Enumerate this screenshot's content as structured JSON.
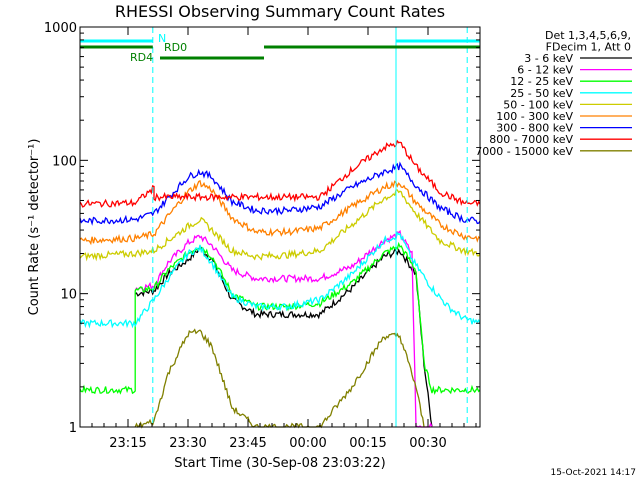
{
  "chart_data": {
    "type": "line",
    "title": "RHESSI Observing Summary Count Rates",
    "xlabel": "Start Time (30-Sep-08 23:03:22)",
    "ylabel": "Count Rate (s⁻¹ detector⁻¹)",
    "yscale": "log",
    "ylim": [
      1,
      1000
    ],
    "xlim_min": [
      0,
      100
    ],
    "x_ticks": [
      {
        "x": 12,
        "label": "23:15"
      },
      {
        "x": 27,
        "label": "23:30"
      },
      {
        "x": 42,
        "label": "23:45"
      },
      {
        "x": 57,
        "label": "00:00"
      },
      {
        "x": 72,
        "label": "00:15"
      },
      {
        "x": 87,
        "label": "00:30"
      }
    ],
    "y_ticks": [
      {
        "y": 1,
        "label": "1"
      },
      {
        "y": 10,
        "label": "10"
      },
      {
        "y": 100,
        "label": "100"
      },
      {
        "y": 1000,
        "label": "1000"
      }
    ],
    "legend_header": [
      "Det 1,3,4,5,6,9,",
      "FDecim 1, Att 0"
    ],
    "legend_position": "right",
    "timestamp": "15-Oct-2021 14:17",
    "flags": [
      {
        "label": "N",
        "color": "#00ffff",
        "segments": [
          [
            0,
            18.2
          ],
          [
            79,
            100
          ]
        ]
      },
      {
        "label": "RD0",
        "color": "#008000",
        "segments": [
          [
            0,
            18.2
          ],
          [
            46,
            100
          ]
        ]
      },
      {
        "label": "RD4",
        "color": "#008000",
        "segments": [
          [
            20,
            46
          ]
        ]
      }
    ],
    "vlines": [
      {
        "x": 18.2,
        "color": "#00ffff",
        "style": "dashed"
      },
      {
        "x": 79.0,
        "color": "#00ffff",
        "style": "solid"
      },
      {
        "x": 96.8,
        "color": "#00ffff",
        "style": "dashed"
      }
    ],
    "series": [
      {
        "name": "3 - 6 keV",
        "color": "#000000",
        "points": [
          [
            13.8,
            10
          ],
          [
            18.5,
            10.5
          ],
          [
            22,
            14
          ],
          [
            27,
            18
          ],
          [
            30,
            22
          ],
          [
            33,
            18
          ],
          [
            38,
            9
          ],
          [
            44,
            7
          ],
          [
            52,
            7
          ],
          [
            60,
            7
          ],
          [
            68,
            11
          ],
          [
            76,
            19
          ],
          [
            80,
            21
          ],
          [
            84,
            14
          ],
          [
            86,
            3
          ],
          [
            88,
            1
          ]
        ]
      },
      {
        "name": "6 - 12 keV",
        "color": "#ff00ff",
        "points": [
          [
            13.8,
            11
          ],
          [
            18.5,
            11.5
          ],
          [
            22,
            17
          ],
          [
            27,
            24
          ],
          [
            30,
            27
          ],
          [
            33,
            23
          ],
          [
            38,
            15
          ],
          [
            44,
            13
          ],
          [
            52,
            13
          ],
          [
            60,
            13
          ],
          [
            68,
            16
          ],
          [
            76,
            25
          ],
          [
            80,
            28
          ],
          [
            83,
            20
          ],
          [
            84,
            1
          ],
          [
            88,
            1
          ]
        ]
      },
      {
        "name": "12 - 25 keV",
        "color": "#00ff00",
        "points": [
          [
            0,
            1.9
          ],
          [
            13.8,
            1.9
          ],
          [
            13.8,
            10.5
          ],
          [
            18.5,
            11
          ],
          [
            22,
            15
          ],
          [
            27,
            20
          ],
          [
            30,
            23
          ],
          [
            33,
            19
          ],
          [
            38,
            10
          ],
          [
            44,
            8
          ],
          [
            52,
            8
          ],
          [
            60,
            8.5
          ],
          [
            68,
            12
          ],
          [
            76,
            20
          ],
          [
            80,
            23
          ],
          [
            84,
            15
          ],
          [
            86,
            3
          ],
          [
            88,
            1.9
          ],
          [
            100,
            1.9
          ]
        ]
      },
      {
        "name": "25 - 50 keV",
        "color": "#00ffff",
        "points": [
          [
            0,
            6
          ],
          [
            13.8,
            6
          ],
          [
            18.5,
            9
          ],
          [
            22,
            13
          ],
          [
            27,
            20
          ],
          [
            30,
            22
          ],
          [
            33,
            17
          ],
          [
            38,
            9.5
          ],
          [
            44,
            8
          ],
          [
            52,
            8
          ],
          [
            60,
            9
          ],
          [
            68,
            14
          ],
          [
            76,
            25
          ],
          [
            80,
            28
          ],
          [
            83,
            18
          ],
          [
            88,
            11
          ],
          [
            92,
            8
          ],
          [
            96,
            6.5
          ],
          [
            100,
            6
          ]
        ]
      },
      {
        "name": "50 - 100 keV",
        "color": "#cccc00",
        "points": [
          [
            0,
            19
          ],
          [
            13.8,
            20
          ],
          [
            18.5,
            21
          ],
          [
            22,
            25
          ],
          [
            27,
            32
          ],
          [
            30,
            36
          ],
          [
            33,
            30
          ],
          [
            38,
            21
          ],
          [
            44,
            19
          ],
          [
            52,
            19.5
          ],
          [
            60,
            21
          ],
          [
            68,
            33
          ],
          [
            76,
            52
          ],
          [
            80,
            58
          ],
          [
            84,
            40
          ],
          [
            90,
            25
          ],
          [
            96,
            21
          ],
          [
            100,
            20
          ]
        ]
      },
      {
        "name": "100 - 300 keV",
        "color": "#ff8000",
        "points": [
          [
            0,
            25
          ],
          [
            13.8,
            26
          ],
          [
            18.5,
            28
          ],
          [
            22,
            38
          ],
          [
            27,
            58
          ],
          [
            30,
            68
          ],
          [
            33,
            60
          ],
          [
            38,
            37
          ],
          [
            44,
            29
          ],
          [
            52,
            29
          ],
          [
            60,
            31
          ],
          [
            68,
            45
          ],
          [
            76,
            63
          ],
          [
            80,
            68
          ],
          [
            84,
            48
          ],
          [
            90,
            33
          ],
          [
            96,
            27
          ],
          [
            100,
            26
          ]
        ]
      },
      {
        "name": "300 - 800 keV",
        "color": "#0000ff",
        "points": [
          [
            0,
            35
          ],
          [
            13.8,
            36
          ],
          [
            18.5,
            40
          ],
          [
            22,
            52
          ],
          [
            27,
            75
          ],
          [
            30,
            82
          ],
          [
            33,
            75
          ],
          [
            38,
            49
          ],
          [
            44,
            42
          ],
          [
            52,
            42
          ],
          [
            60,
            45
          ],
          [
            68,
            63
          ],
          [
            76,
            82
          ],
          [
            80,
            90
          ],
          [
            84,
            65
          ],
          [
            90,
            44
          ],
          [
            96,
            36
          ],
          [
            100,
            35
          ]
        ]
      },
      {
        "name": "800 - 7000 keV",
        "color": "#ff0000",
        "points": [
          [
            0,
            47
          ],
          [
            13.8,
            48
          ],
          [
            18.5,
            62
          ],
          [
            18.5,
            53
          ],
          [
            60,
            53
          ],
          [
            68,
            85
          ],
          [
            76,
            125
          ],
          [
            80,
            135
          ],
          [
            84,
            90
          ],
          [
            90,
            58
          ],
          [
            96,
            48
          ],
          [
            100,
            47
          ]
        ]
      },
      {
        "name": "7000 - 15000 keV",
        "color": "#808000",
        "points": [
          [
            13.8,
            1
          ],
          [
            18.5,
            1.1
          ],
          [
            22,
            2.5
          ],
          [
            27,
            5
          ],
          [
            30,
            5.2
          ],
          [
            33,
            4
          ],
          [
            38,
            1.4
          ],
          [
            44,
            1
          ],
          [
            60,
            1
          ],
          [
            68,
            2
          ],
          [
            76,
            4.8
          ],
          [
            80,
            4.8
          ],
          [
            84,
            2
          ],
          [
            86,
            1
          ]
        ]
      }
    ]
  }
}
